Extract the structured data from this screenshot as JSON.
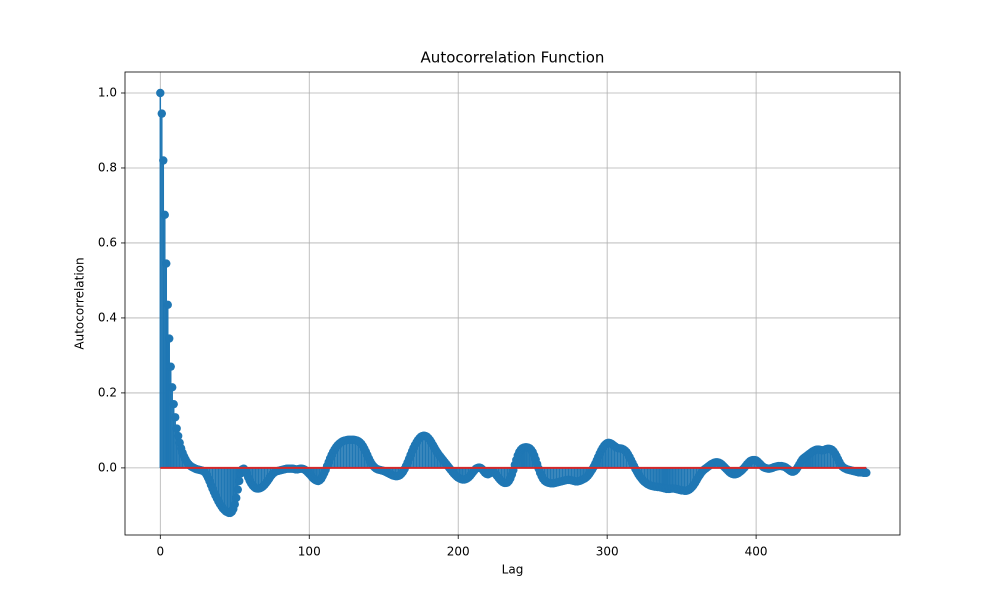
{
  "chart_data": {
    "type": "stem",
    "title": "Autocorrelation Function",
    "x_label": "Lag",
    "y_label": "Autocorrelation",
    "xlim": [
      -23.7,
      496.6
    ],
    "ylim": [
      -0.179,
      1.056
    ],
    "xticks": [
      0,
      100,
      200,
      300,
      400
    ],
    "yticks": [
      {
        "value": 0,
        "label": "0.0"
      },
      0.2,
      0.4,
      0.6,
      0.8,
      {
        "value": 1,
        "label": "1.0"
      }
    ],
    "grid": true,
    "color": "#1f77b4",
    "baseline_color": "#d62728",
    "x": [
      0,
      1,
      2,
      3,
      4,
      5,
      6,
      7,
      8,
      9,
      10,
      11,
      12,
      13,
      14,
      15,
      16,
      17,
      18,
      19,
      20,
      21,
      22,
      23,
      24,
      25,
      26,
      27,
      28,
      29,
      30,
      31,
      32,
      33,
      34,
      35,
      36,
      37,
      38,
      39,
      40,
      41,
      42,
      43,
      44,
      45,
      46,
      47,
      48,
      49,
      50,
      51,
      52,
      53,
      54,
      55,
      56,
      57,
      58,
      59,
      60,
      61,
      62,
      63,
      64,
      65,
      66,
      67,
      68,
      69,
      70,
      71,
      72,
      73,
      74,
      75,
      76,
      77,
      78,
      79,
      80,
      81,
      82,
      83,
      84,
      85,
      86,
      87,
      88,
      89,
      90,
      91,
      92,
      93,
      94,
      95,
      96,
      97,
      98,
      99,
      100,
      101,
      102,
      103,
      104,
      105,
      106,
      107,
      108,
      109,
      110,
      111,
      112,
      113,
      114,
      115,
      116,
      117,
      118,
      119,
      120,
      121,
      122,
      123,
      124,
      125,
      126,
      127,
      128,
      129,
      130,
      131,
      132,
      133,
      134,
      135,
      136,
      137,
      138,
      139,
      140,
      141,
      142,
      143,
      144,
      145,
      146,
      147,
      148,
      149,
      150,
      151,
      152,
      153,
      154,
      155,
      156,
      157,
      158,
      159,
      160,
      161,
      162,
      163,
      164,
      165,
      166,
      167,
      168,
      169,
      170,
      171,
      172,
      173,
      174,
      175,
      176,
      177,
      178,
      179,
      180,
      181,
      182,
      183,
      184,
      185,
      186,
      187,
      188,
      189,
      190,
      191,
      192,
      193,
      194,
      195,
      196,
      197,
      198,
      199,
      200,
      201,
      202,
      203,
      204,
      205,
      206,
      207,
      208,
      209,
      210,
      211,
      212,
      213,
      214,
      215,
      216,
      217,
      218,
      219,
      220,
      221,
      222,
      223,
      224,
      225,
      226,
      227,
      228,
      229,
      230,
      231,
      232,
      233,
      234,
      235,
      236,
      237,
      238,
      239,
      240,
      241,
      242,
      243,
      244,
      245,
      246,
      247,
      248,
      249,
      250,
      251,
      252,
      253,
      254,
      255,
      256,
      257,
      258,
      259,
      260,
      261,
      262,
      263,
      264,
      265,
      266,
      267,
      268,
      269,
      270,
      271,
      272,
      273,
      274,
      275,
      276,
      277,
      278,
      279,
      280,
      281,
      282,
      283,
      284,
      285,
      286,
      287,
      288,
      289,
      290,
      291,
      292,
      293,
      294,
      295,
      296,
      297,
      298,
      299,
      300,
      301,
      302,
      303,
      304,
      305,
      306,
      307,
      308,
      309,
      310,
      311,
      312,
      313,
      314,
      315,
      316,
      317,
      318,
      319,
      320,
      321,
      322,
      323,
      324,
      325,
      326,
      327,
      328,
      329,
      330,
      331,
      332,
      333,
      334,
      335,
      336,
      337,
      338,
      339,
      340,
      341,
      342,
      343,
      344,
      345,
      346,
      347,
      348,
      349,
      350,
      351,
      352,
      353,
      354,
      355,
      356,
      357,
      358,
      359,
      360,
      361,
      362,
      363,
      364,
      365,
      366,
      367,
      368,
      369,
      370,
      371,
      372,
      373,
      374,
      375,
      376,
      377,
      378,
      379,
      380,
      381,
      382,
      383,
      384,
      385,
      386,
      387,
      388,
      389,
      390,
      391,
      392,
      393,
      394,
      395,
      396,
      397,
      398,
      399,
      400,
      401,
      402,
      403,
      404,
      405,
      406,
      407,
      408,
      409,
      410,
      411,
      412,
      413,
      414,
      415,
      416,
      417,
      418,
      419,
      420,
      421,
      422,
      423,
      424,
      425,
      426,
      427,
      428,
      429,
      430,
      431,
      432,
      433,
      434,
      435,
      436,
      437,
      438,
      439,
      440,
      441,
      442,
      443,
      444,
      445,
      446,
      447,
      448,
      449,
      450,
      451,
      452,
      453,
      454,
      455,
      456,
      457,
      458,
      459,
      460,
      461,
      462,
      463,
      464,
      465,
      466,
      467,
      468,
      469,
      470,
      471,
      472,
      473,
      474
    ],
    "values": [
      1.0,
      0.945,
      0.82,
      0.675,
      0.545,
      0.435,
      0.345,
      0.27,
      0.215,
      0.17,
      0.135,
      0.105,
      0.085,
      0.067,
      0.052,
      0.04,
      0.03,
      0.022,
      0.015,
      0.01,
      0.006,
      0.003,
      0.001,
      -0.001,
      -0.003,
      -0.004,
      -0.005,
      -0.006,
      -0.007,
      -0.009,
      -0.012,
      -0.018,
      -0.026,
      -0.035,
      -0.045,
      -0.055,
      -0.064,
      -0.073,
      -0.081,
      -0.089,
      -0.096,
      -0.102,
      -0.108,
      -0.112,
      -0.116,
      -0.118,
      -0.12,
      -0.12,
      -0.117,
      -0.11,
      -0.097,
      -0.08,
      -0.058,
      -0.035,
      -0.015,
      -0.004,
      -0.002,
      -0.006,
      -0.015,
      -0.025,
      -0.034,
      -0.041,
      -0.047,
      -0.051,
      -0.054,
      -0.055,
      -0.055,
      -0.054,
      -0.052,
      -0.049,
      -0.045,
      -0.04,
      -0.035,
      -0.029,
      -0.023,
      -0.018,
      -0.014,
      -0.011,
      -0.009,
      -0.008,
      -0.007,
      -0.006,
      -0.005,
      -0.004,
      -0.003,
      -0.002,
      -0.002,
      -0.002,
      -0.002,
      -0.002,
      -0.003,
      -0.004,
      -0.004,
      -0.003,
      -0.002,
      -0.002,
      -0.003,
      -0.005,
      -0.008,
      -0.012,
      -0.016,
      -0.02,
      -0.025,
      -0.029,
      -0.032,
      -0.034,
      -0.035,
      -0.033,
      -0.029,
      -0.022,
      -0.014,
      -0.005,
      0.005,
      0.015,
      0.025,
      0.034,
      0.042,
      0.049,
      0.055,
      0.06,
      0.064,
      0.067,
      0.07,
      0.072,
      0.073,
      0.074,
      0.075,
      0.075,
      0.075,
      0.075,
      0.075,
      0.074,
      0.073,
      0.071,
      0.068,
      0.064,
      0.058,
      0.051,
      0.043,
      0.034,
      0.025,
      0.017,
      0.01,
      0.005,
      0.001,
      -0.002,
      -0.004,
      -0.005,
      -0.006,
      -0.007,
      -0.008,
      -0.01,
      -0.012,
      -0.014,
      -0.016,
      -0.018,
      -0.02,
      -0.021,
      -0.022,
      -0.022,
      -0.021,
      -0.019,
      -0.015,
      -0.01,
      -0.003,
      0.005,
      0.014,
      0.024,
      0.034,
      0.044,
      0.053,
      0.061,
      0.068,
      0.074,
      0.079,
      0.083,
      0.085,
      0.086,
      0.085,
      0.083,
      0.079,
      0.074,
      0.068,
      0.061,
      0.054,
      0.047,
      0.041,
      0.035,
      0.03,
      0.025,
      0.02,
      0.015,
      0.01,
      0.005,
      0.0,
      -0.005,
      -0.01,
      -0.015,
      -0.019,
      -0.023,
      -0.026,
      -0.028,
      -0.03,
      -0.031,
      -0.031,
      -0.03,
      -0.028,
      -0.025,
      -0.021,
      -0.016,
      -0.011,
      -0.006,
      -0.002,
      0.0,
      0.001,
      0.0,
      -0.003,
      -0.008,
      -0.013,
      -0.016,
      -0.017,
      -0.015,
      -0.012,
      -0.01,
      -0.012,
      -0.016,
      -0.021,
      -0.026,
      -0.031,
      -0.035,
      -0.038,
      -0.04,
      -0.04,
      -0.039,
      -0.035,
      -0.028,
      -0.018,
      -0.006,
      0.008,
      0.021,
      0.033,
      0.042,
      0.048,
      0.052,
      0.054,
      0.055,
      0.055,
      0.054,
      0.052,
      0.048,
      0.042,
      0.033,
      0.022,
      0.01,
      -0.002,
      -0.013,
      -0.022,
      -0.029,
      -0.034,
      -0.037,
      -0.039,
      -0.04,
      -0.041,
      -0.041,
      -0.041,
      -0.04,
      -0.039,
      -0.038,
      -0.037,
      -0.036,
      -0.035,
      -0.034,
      -0.033,
      -0.032,
      -0.032,
      -0.032,
      -0.033,
      -0.034,
      -0.035,
      -0.036,
      -0.036,
      -0.035,
      -0.034,
      -0.032,
      -0.03,
      -0.028,
      -0.025,
      -0.021,
      -0.016,
      -0.01,
      -0.004,
      0.003,
      0.011,
      0.02,
      0.029,
      0.038,
      0.046,
      0.053,
      0.059,
      0.063,
      0.066,
      0.067,
      0.066,
      0.064,
      0.061,
      0.058,
      0.055,
      0.053,
      0.052,
      0.052,
      0.051,
      0.049,
      0.046,
      0.042,
      0.036,
      0.029,
      0.021,
      0.013,
      0.005,
      -0.003,
      -0.01,
      -0.017,
      -0.023,
      -0.028,
      -0.033,
      -0.037,
      -0.04,
      -0.043,
      -0.045,
      -0.047,
      -0.048,
      -0.049,
      -0.05,
      -0.05,
      -0.051,
      -0.051,
      -0.052,
      -0.053,
      -0.054,
      -0.055,
      -0.056,
      -0.056,
      -0.056,
      -0.055,
      -0.055,
      -0.055,
      -0.056,
      -0.057,
      -0.058,
      -0.059,
      -0.06,
      -0.06,
      -0.061,
      -0.061,
      -0.06,
      -0.058,
      -0.055,
      -0.051,
      -0.046,
      -0.04,
      -0.033,
      -0.026,
      -0.02,
      -0.014,
      -0.009,
      -0.005,
      -0.002,
      0.001,
      0.004,
      0.007,
      0.01,
      0.012,
      0.014,
      0.015,
      0.015,
      0.014,
      0.012,
      0.009,
      0.005,
      0.001,
      -0.003,
      -0.007,
      -0.011,
      -0.014,
      -0.016,
      -0.017,
      -0.017,
      -0.016,
      -0.014,
      -0.011,
      -0.008,
      -0.004,
      0.0,
      0.005,
      0.01,
      0.014,
      0.018,
      0.02,
      0.021,
      0.021,
      0.02,
      0.017,
      0.013,
      0.009,
      0.005,
      0.002,
      0.0,
      -0.001,
      -0.002,
      -0.002,
      -0.001,
      0.0,
      0.002,
      0.003,
      0.004,
      0.005,
      0.005,
      0.005,
      0.004,
      0.003,
      0.001,
      -0.002,
      -0.005,
      -0.008,
      -0.01,
      -0.01,
      -0.008,
      -0.004,
      0.002,
      0.009,
      0.016,
      0.022,
      0.026,
      0.029,
      0.032,
      0.035,
      0.038,
      0.041,
      0.044,
      0.046,
      0.048,
      0.049,
      0.049,
      0.048,
      0.047,
      0.047,
      0.048,
      0.05,
      0.051,
      0.051,
      0.05,
      0.048,
      0.044,
      0.038,
      0.031,
      0.023,
      0.015,
      0.008,
      0.003,
      0.0,
      -0.002,
      -0.004,
      -0.005,
      -0.006,
      -0.007,
      -0.008,
      -0.009,
      -0.01,
      -0.011,
      -0.012,
      -0.012,
      -0.012,
      -0.013,
      -0.013,
      -0.013
    ]
  }
}
